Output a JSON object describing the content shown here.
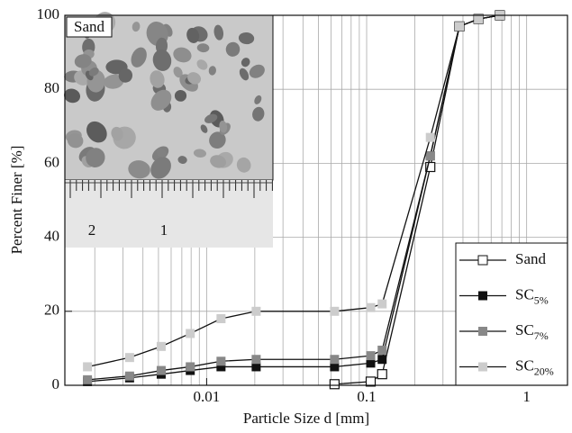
{
  "chart_data": {
    "type": "line",
    "x_label": "Particle Size d [mm]",
    "y_label": "Percent Finer [%]",
    "log_x": true,
    "grid": true,
    "legend": "lower right",
    "xlim": [
      0.0013,
      1.8
    ],
    "xticks": [
      0.01,
      0.1,
      1
    ],
    "ylim": [
      0,
      100
    ],
    "yticks": [
      0,
      20,
      40,
      60,
      80,
      100
    ],
    "x": [
      0.0018,
      0.0033,
      0.0052,
      0.0079,
      0.0123,
      0.0204,
      0.063,
      0.106,
      0.125,
      0.25,
      0.38,
      0.5,
      0.68
    ],
    "series": [
      {
        "name": "Sand",
        "color": "#ffffff",
        "values": [
          null,
          null,
          null,
          null,
          null,
          null,
          0.3,
          1,
          3,
          59,
          97,
          99,
          100
        ]
      },
      {
        "name": "SC5%",
        "color": "#111111",
        "values": [
          1,
          2,
          3,
          4,
          5,
          5,
          5,
          6,
          7,
          62,
          97,
          99,
          100
        ]
      },
      {
        "name": "SC7%",
        "color": "#888888",
        "values": [
          1.5,
          2.5,
          4,
          5,
          6.5,
          7,
          7,
          8,
          9.5,
          62,
          97,
          99,
          100
        ]
      },
      {
        "name": "SC20%",
        "color": "#cccccc",
        "values": [
          5,
          7.5,
          10.5,
          14,
          18,
          20,
          20,
          21,
          22,
          67,
          97,
          99,
          100
        ]
      }
    ],
    "inset": {
      "label": "Sand",
      "scale_labels": [
        "2",
        "1"
      ]
    }
  }
}
